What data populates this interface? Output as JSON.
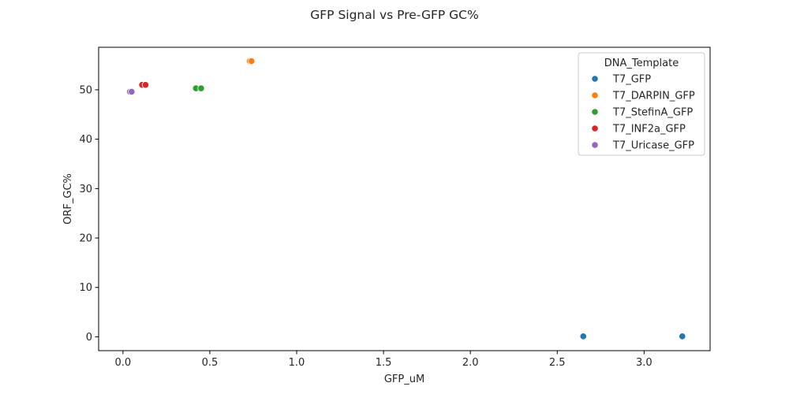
{
  "chart_data": {
    "type": "scatter",
    "title": "GFP Signal vs Pre-GFP GC%",
    "xlabel": "GFP_uM",
    "ylabel": "ORF_GC%",
    "xlim": [
      -0.14,
      3.38
    ],
    "ylim": [
      -2.8,
      58.6
    ],
    "xticks": [
      0.0,
      0.5,
      1.0,
      1.5,
      2.0,
      2.5,
      3.0
    ],
    "xtick_labels": [
      "0.0",
      "0.5",
      "1.0",
      "1.5",
      "2.0",
      "2.5",
      "3.0"
    ],
    "yticks": [
      0,
      10,
      20,
      30,
      40,
      50
    ],
    "ytick_labels": [
      "0",
      "10",
      "20",
      "30",
      "40",
      "50"
    ],
    "grid": false,
    "legend": {
      "title": "DNA_Template",
      "placement": "top-right"
    },
    "series": [
      {
        "name": "T7_GFP",
        "color": "#1f77b4",
        "points": [
          {
            "x": 2.65,
            "y": 0.1
          },
          {
            "x": 3.22,
            "y": 0.1
          }
        ]
      },
      {
        "name": "T7_DARPIN_GFP",
        "color": "#ff7f0e",
        "points": [
          {
            "x": 0.73,
            "y": 55.8
          },
          {
            "x": 0.74,
            "y": 55.8
          }
        ]
      },
      {
        "name": "T7_StefinA_GFP",
        "color": "#2ca02c",
        "points": [
          {
            "x": 0.42,
            "y": 50.3
          },
          {
            "x": 0.45,
            "y": 50.3
          }
        ]
      },
      {
        "name": "T7_INF2a_GFP",
        "color": "#d62728",
        "points": [
          {
            "x": 0.11,
            "y": 51.0
          },
          {
            "x": 0.13,
            "y": 51.0
          }
        ]
      },
      {
        "name": "T7_Uricase_GFP",
        "color": "#9467bd",
        "points": [
          {
            "x": 0.04,
            "y": 49.6
          },
          {
            "x": 0.05,
            "y": 49.6
          }
        ]
      }
    ]
  }
}
